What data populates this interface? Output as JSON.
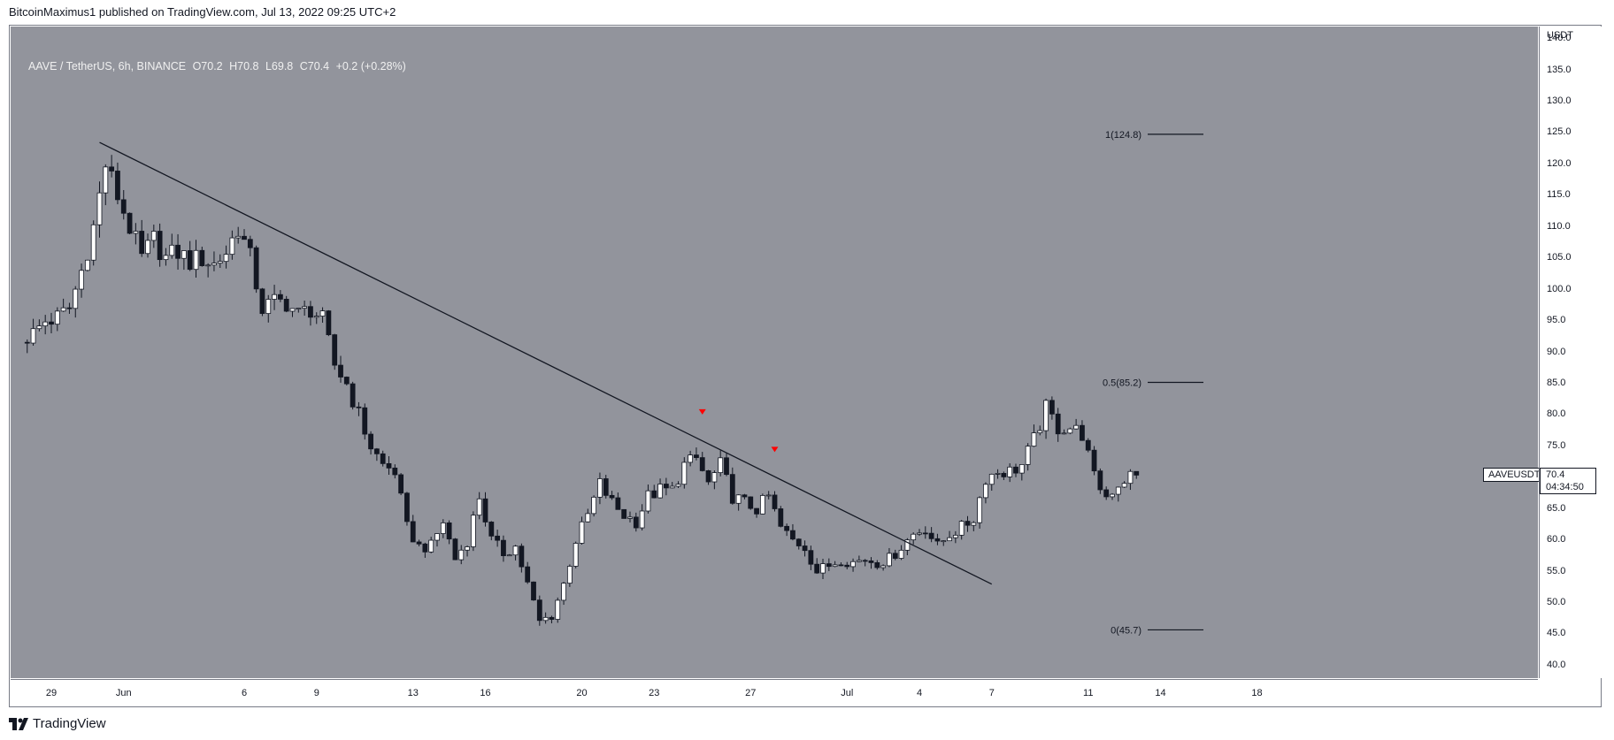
{
  "header": {
    "text": "BitcoinMaximus1 published on TradingView.com, Jul 13, 2022 09:25 UTC+2"
  },
  "legend": {
    "symbol": "AAVE / TetherUS, 6h, BINANCE",
    "open": "O70.2",
    "high": "H70.8",
    "low": "L69.8",
    "close": "C70.4",
    "change": "+0.2 (+0.28%)"
  },
  "price_scale": {
    "currency": "USDT",
    "last_tag_label": "AAVEUSDT",
    "last_price": "70.4",
    "countdown": "04:34:50"
  },
  "footer": {
    "brand": "TradingView"
  },
  "colors": {
    "background": "#92949c",
    "up": "#ffffff",
    "down": "#131722",
    "marker": "#ff0000"
  },
  "chart_data": {
    "type": "candlestick",
    "title": "AAVE / TetherUS, 6h, BINANCE",
    "xlabel": "",
    "ylabel": "USDT",
    "ylim": [
      38,
      142
    ],
    "x_ticks": [
      "29",
      "Jun",
      "6",
      "9",
      "13",
      "16",
      "20",
      "23",
      "27",
      "Jul",
      "4",
      "7",
      "11",
      "14",
      "18"
    ],
    "y_ticks": [
      "140.0",
      "135.0",
      "130.0",
      "125.0",
      "120.0",
      "115.0",
      "110.0",
      "105.0",
      "100.0",
      "95.0",
      "90.0",
      "85.0",
      "80.0",
      "75.0",
      "70.0",
      "65.0",
      "60.0",
      "55.0",
      "50.0",
      "45.0",
      "40.0"
    ],
    "grid": false,
    "close_path": [
      [
        "2022-05-28",
        92
      ],
      [
        "2022-05-28 12h",
        93
      ],
      [
        "2022-05-29",
        95
      ],
      [
        "2022-05-29 12h",
        95.5
      ],
      [
        "2022-05-30",
        97
      ],
      [
        "2022-05-30 12h",
        103
      ],
      [
        "2022-05-31",
        110
      ],
      [
        "2022-05-31 12h",
        120
      ],
      [
        "2022-06-01",
        115
      ],
      [
        "2022-06-01 12h",
        110
      ],
      [
        "2022-06-02",
        105
      ],
      [
        "2022-06-02 12h",
        108
      ],
      [
        "2022-06-03",
        105
      ],
      [
        "2022-06-03 12h",
        106
      ],
      [
        "2022-06-04",
        104.5
      ],
      [
        "2022-06-04 12h",
        105
      ],
      [
        "2022-06-05",
        104
      ],
      [
        "2022-06-05 12h",
        106
      ],
      [
        "2022-06-06",
        110
      ],
      [
        "2022-06-06 12h",
        105
      ],
      [
        "2022-06-07",
        97
      ],
      [
        "2022-06-07 12h",
        98
      ],
      [
        "2022-06-08",
        98
      ],
      [
        "2022-06-08 12h",
        96
      ],
      [
        "2022-06-09",
        97
      ],
      [
        "2022-06-09 12h",
        95
      ],
      [
        "2022-06-10",
        88
      ],
      [
        "2022-06-10 12h",
        85
      ],
      [
        "2022-06-11",
        80
      ],
      [
        "2022-06-11 12h",
        75
      ],
      [
        "2022-06-12",
        72
      ],
      [
        "2022-06-12 12h",
        71
      ],
      [
        "2022-06-13",
        62
      ],
      [
        "2022-06-13 12h",
        59
      ],
      [
        "2022-06-14",
        59
      ],
      [
        "2022-06-14 12h",
        63
      ],
      [
        "2022-06-15",
        57
      ],
      [
        "2022-06-15 12h",
        60
      ],
      [
        "2022-06-16",
        67
      ],
      [
        "2022-06-16 12h",
        60
      ],
      [
        "2022-06-17",
        58
      ],
      [
        "2022-06-17 12h",
        59
      ],
      [
        "2022-06-18",
        53
      ],
      [
        "2022-06-18 12h",
        47
      ],
      [
        "2022-06-19",
        48
      ],
      [
        "2022-06-19 12h",
        53
      ],
      [
        "2022-06-20",
        60
      ],
      [
        "2022-06-20 12h",
        64
      ],
      [
        "2022-06-21",
        69
      ],
      [
        "2022-06-21 12h",
        66
      ],
      [
        "2022-06-22",
        64
      ],
      [
        "2022-06-22 12h",
        63
      ],
      [
        "2022-06-23",
        67
      ],
      [
        "2022-06-23 12h",
        68
      ],
      [
        "2022-06-24",
        68
      ],
      [
        "2022-06-24 12h",
        72
      ],
      [
        "2022-06-25",
        73
      ],
      [
        "2022-06-25 12h",
        69
      ],
      [
        "2022-06-26",
        72
      ],
      [
        "2022-06-26 12h",
        67
      ],
      [
        "2022-06-27",
        66
      ],
      [
        "2022-06-27 12h",
        65
      ],
      [
        "2022-06-28",
        67
      ],
      [
        "2022-06-28 12h",
        62
      ],
      [
        "2022-06-29",
        60
      ],
      [
        "2022-06-29 12h",
        59
      ],
      [
        "2022-06-30",
        55
      ],
      [
        "2022-06-30 12h",
        56
      ],
      [
        "2022-07-01",
        57
      ],
      [
        "2022-07-01 12h",
        56.5
      ],
      [
        "2022-07-02",
        57
      ],
      [
        "2022-07-02 12h",
        56.5
      ],
      [
        "2022-07-03",
        57
      ],
      [
        "2022-07-03 12h",
        59
      ],
      [
        "2022-07-04",
        61
      ],
      [
        "2022-07-04 12h",
        62
      ],
      [
        "2022-07-05",
        59
      ],
      [
        "2022-07-05 12h",
        61
      ],
      [
        "2022-07-06",
        62
      ],
      [
        "2022-07-06 12h",
        63.5
      ],
      [
        "2022-07-07",
        70
      ],
      [
        "2022-07-07 12h",
        71
      ],
      [
        "2022-07-08",
        71
      ],
      [
        "2022-07-08 12h",
        72
      ],
      [
        "2022-07-09",
        76
      ],
      [
        "2022-07-09 12h",
        81
      ],
      [
        "2022-07-10",
        78
      ],
      [
        "2022-07-10 12h",
        78
      ],
      [
        "2022-07-11",
        77
      ],
      [
        "2022-07-11 12h",
        70
      ],
      [
        "2022-07-12",
        67
      ],
      [
        "2022-07-12 12h",
        69
      ],
      [
        "2022-07-13",
        70.4
      ]
    ],
    "trendline": {
      "from": [
        "2022-05-31",
        123.5
      ],
      "to": [
        "2022-07-07",
        53
      ]
    },
    "fib_levels": [
      {
        "label": "1(124.8)",
        "value": 124.8
      },
      {
        "label": "0.5(85.2)",
        "value": 85.2
      },
      {
        "label": "0(45.7)",
        "value": 45.7
      }
    ],
    "rejection_markers": [
      [
        "2022-06-25",
        80.5
      ],
      [
        "2022-06-28",
        74.5
      ]
    ]
  }
}
